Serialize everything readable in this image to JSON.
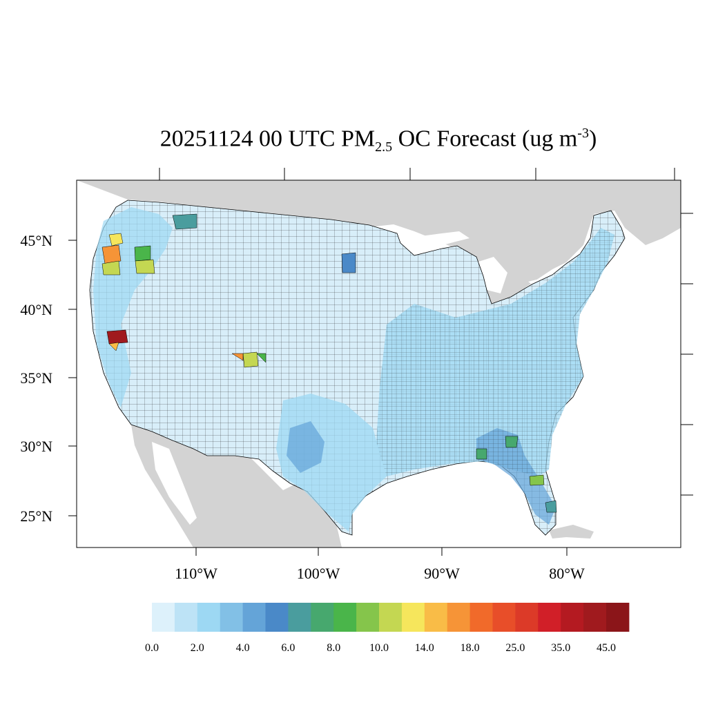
{
  "title": {
    "main": "20251124 00 UTC PM",
    "subscript": "2.5",
    "after": " OC Forecast (ug m",
    "superscript": "-3",
    "close": ")"
  },
  "map": {
    "land_color": "#d3d3d3",
    "water_color": "#ffffff",
    "county_border_color": "#000000",
    "lat_labels": [
      "45°N",
      "40°N",
      "35°N",
      "30°N",
      "25°N"
    ],
    "lon_labels": [
      "110°W",
      "100°W",
      "90°W",
      "80°W"
    ]
  },
  "colorbar": {
    "colors": [
      "#ddf1fb",
      "#bde3f6",
      "#9dd8f3",
      "#82c0e6",
      "#64a4d8",
      "#4a89c8",
      "#4a9d9e",
      "#47a86e",
      "#4ab54a",
      "#85c54b",
      "#c4d752",
      "#f6e65c",
      "#f9bc47",
      "#f69437",
      "#f16a2a",
      "#e84e29",
      "#dc3a28",
      "#d11f28",
      "#b41a21",
      "#a01a1e",
      "#8b1519"
    ],
    "labels": [
      "0.0",
      "2.0",
      "4.0",
      "6.0",
      "8.0",
      "10.0",
      "14.0",
      "18.0",
      "25.0",
      "35.0",
      "45.0"
    ]
  }
}
